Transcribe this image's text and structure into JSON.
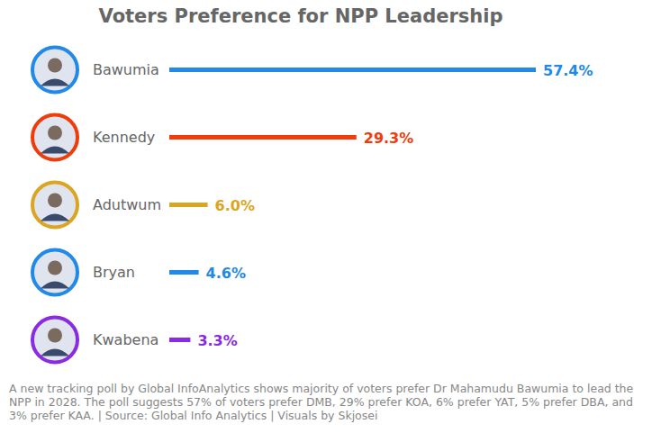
{
  "chart_data": {
    "type": "bar",
    "orientation": "horizontal",
    "title": "Voters Preference for NPP Leadership",
    "categories": [
      "Bawumia",
      "Kennedy",
      "Adutwum",
      "Bryan",
      "Kwabena"
    ],
    "values": [
      57.4,
      29.3,
      6.0,
      4.6,
      3.3
    ],
    "value_labels": [
      "57.4%",
      "29.3%",
      "6.0%",
      "4.6%",
      "3.3%"
    ],
    "colors": [
      "#2189e8",
      "#f03c0a",
      "#daa520",
      "#2189e8",
      "#8a2be2"
    ],
    "data_labels": true,
    "tick_labels": "y",
    "grid": false,
    "caption": "A new tracking poll by Global InfoAnalytics shows majority of voters prefer Dr Mahamudu Bawumia to lead the NPP in 2028. The poll suggests 57% of voters prefer DMB, 29% prefer KOA, 6% prefer YAT, 5% prefer DBA, and 3% prefer KAA. | Source: Global Info Analytics | Visuals by Skjosei"
  }
}
